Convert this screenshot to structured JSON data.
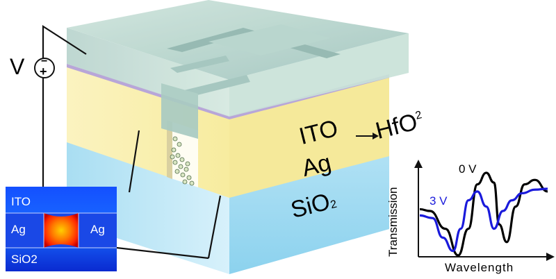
{
  "voltage": {
    "label": "V",
    "minus": "−",
    "plus": "+"
  },
  "layers": {
    "ito": "ITO",
    "hfo2_main": "HfO",
    "hfo2_sub": "2",
    "ag": "Ag",
    "sio2_main": "SiO",
    "sio2_sub": "2"
  },
  "inset": {
    "top": "ITO",
    "left": "Ag",
    "right": "Ag",
    "bottom": "SiO2"
  },
  "chart_data": {
    "type": "line",
    "xlabel": "Wavelength",
    "ylabel": "Transmission",
    "series": [
      {
        "name": "0 V",
        "color": "#000000",
        "x": [
          0,
          0.08,
          0.2,
          0.3,
          0.38,
          0.45,
          0.52,
          0.58,
          0.62,
          0.68,
          0.75,
          0.82,
          0.9,
          1.0
        ],
        "y": [
          0.52,
          0.5,
          0.3,
          0.0,
          0.3,
          0.8,
          0.93,
          0.82,
          0.35,
          0.15,
          0.55,
          0.8,
          0.85,
          0.72
        ]
      },
      {
        "name": "3 V",
        "color": "#1a1adb",
        "x": [
          0,
          0.1,
          0.18,
          0.26,
          0.32,
          0.38,
          0.45,
          0.52,
          0.58,
          0.65,
          0.72,
          0.8,
          0.9,
          1.0
        ],
        "y": [
          0.45,
          0.42,
          0.2,
          0.05,
          0.3,
          0.62,
          0.72,
          0.55,
          0.3,
          0.5,
          0.62,
          0.7,
          0.74,
          0.75
        ]
      }
    ]
  }
}
